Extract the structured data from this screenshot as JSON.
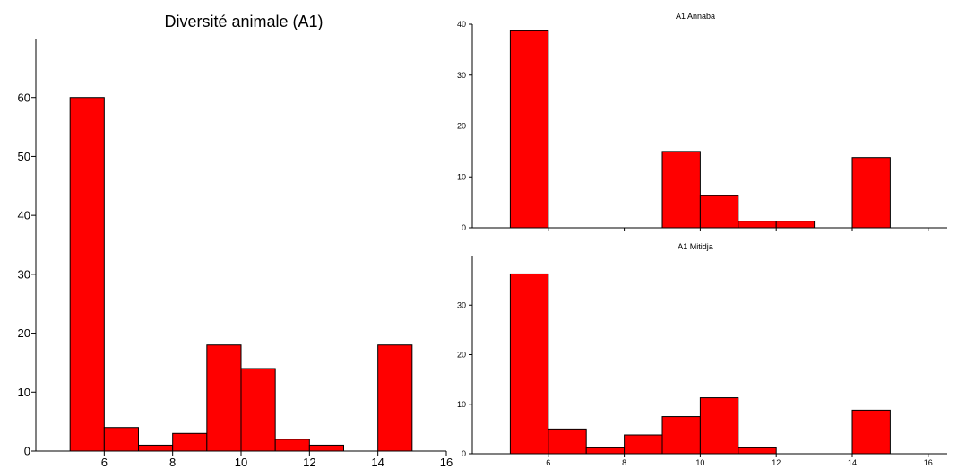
{
  "colors": {
    "bar_fill": "#ff0000",
    "bar_stroke": "#000000",
    "axis": "#000000"
  },
  "chart_data": [
    {
      "type": "bar",
      "title": "Diversité animale (A1)",
      "xlabel": "",
      "ylabel": "",
      "xlim": [
        4,
        16
      ],
      "ylim": [
        0,
        70
      ],
      "bin_width": 1,
      "bins": [
        {
          "start": 5,
          "value": 60
        },
        {
          "start": 6,
          "value": 4
        },
        {
          "start": 7,
          "value": 1
        },
        {
          "start": 8,
          "value": 3
        },
        {
          "start": 9,
          "value": 18
        },
        {
          "start": 10,
          "value": 14
        },
        {
          "start": 11,
          "value": 2
        },
        {
          "start": 12,
          "value": 1
        },
        {
          "start": 14,
          "value": 18
        }
      ],
      "xticks": [
        "6",
        "8",
        "10",
        "12",
        "14",
        "16"
      ],
      "yticks": [
        "0",
        "10",
        "20",
        "30",
        "40",
        "50",
        "60"
      ]
    },
    {
      "type": "bar",
      "title": "A1  Annaba",
      "xlabel": "",
      "ylabel": "",
      "xlim": [
        4,
        16.5
      ],
      "ylim": [
        0,
        40
      ],
      "bin_width": 1,
      "bins": [
        {
          "start": 5,
          "value": 38.7
        },
        {
          "start": 9,
          "value": 15
        },
        {
          "start": 10,
          "value": 6.3
        },
        {
          "start": 11,
          "value": 1.3
        },
        {
          "start": 12,
          "value": 1.3
        },
        {
          "start": 14,
          "value": 13.8
        }
      ],
      "xticks": [],
      "yticks": [
        "0",
        "10",
        "20",
        "30",
        "40"
      ]
    },
    {
      "type": "bar",
      "title": "A1 Mitidja",
      "xlabel": "",
      "ylabel": "",
      "xlim": [
        4,
        16.5
      ],
      "ylim": [
        0,
        40
      ],
      "bin_width": 1,
      "bins": [
        {
          "start": 5,
          "value": 36.3
        },
        {
          "start": 6,
          "value": 5
        },
        {
          "start": 7,
          "value": 1.2
        },
        {
          "start": 8,
          "value": 3.8
        },
        {
          "start": 9,
          "value": 7.5
        },
        {
          "start": 10,
          "value": 11.3
        },
        {
          "start": 11,
          "value": 1.2
        },
        {
          "start": 14,
          "value": 8.8
        }
      ],
      "xticks": [
        "6",
        "8",
        "10",
        "12",
        "14",
        "16"
      ],
      "yticks": [
        "0",
        "10",
        "20",
        "30"
      ]
    }
  ]
}
